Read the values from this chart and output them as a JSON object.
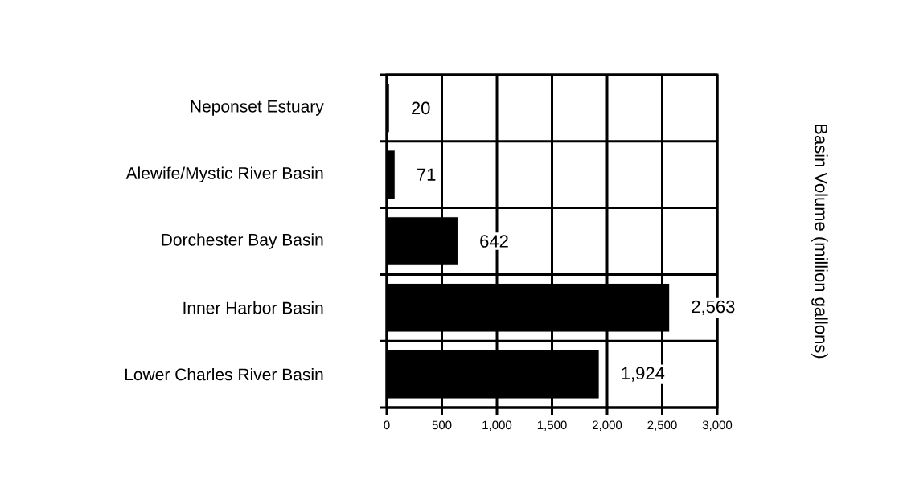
{
  "chart_data": {
    "type": "bar",
    "orientation": "horizontal",
    "categories": [
      "Neponset Estuary",
      "Alewife/Mystic River Basin",
      "Dorchester Bay Basin",
      "Inner Harbor Basin",
      "Lower Charles River Basin"
    ],
    "values": [
      20,
      71,
      642,
      2563,
      1924
    ],
    "color": "#000000",
    "value_labels": [
      "20",
      "71",
      "642",
      "2,563",
      "1,924"
    ],
    "annotations": [
      "Basin Volume (million gallons)"
    ],
    "xlim": [
      0,
      3000
    ],
    "xticks": [
      0,
      500,
      {
        "value": 1000,
        "label": "1,000"
      },
      {
        "value": 1500,
        "label": "1,500"
      },
      {
        "value": 2000,
        "label": "2,000"
      },
      {
        "value": 2500,
        "label": "2,500"
      },
      {
        "value": 3000,
        "label": "3,000"
      }
    ],
    "grid": true
  }
}
